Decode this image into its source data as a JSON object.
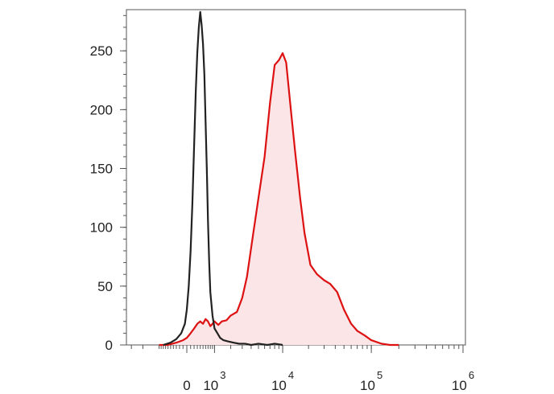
{
  "chart_data": {
    "type": "area",
    "title": "",
    "xlabel": "",
    "ylabel": "",
    "x_scale": "logicle",
    "x_ticks": [
      {
        "value": 0,
        "base": "0",
        "exp": ""
      },
      {
        "value": 1000,
        "base": "10",
        "exp": "3"
      },
      {
        "value": 10000,
        "base": "10",
        "exp": "4"
      },
      {
        "value": 100000,
        "base": "10",
        "exp": "5"
      },
      {
        "value": 1000000,
        "base": "10",
        "exp": "6"
      }
    ],
    "ylim": [
      0,
      285
    ],
    "y_ticks": [
      0,
      50,
      100,
      150,
      200,
      250
    ],
    "grid": false,
    "legend": "none",
    "series": [
      {
        "color": "#222222",
        "fill": "none",
        "x": [
          -800,
          -500,
          -300,
          -150,
          -50,
          0,
          50,
          100,
          150,
          200,
          250,
          300,
          350,
          400,
          450,
          500,
          550,
          600,
          650,
          700,
          750,
          800,
          900,
          1000,
          1150,
          1300,
          1500,
          1800,
          2200,
          2700,
          3300,
          4000,
          5000,
          6500,
          8000,
          10000
        ],
        "y": [
          0,
          2,
          5,
          10,
          18,
          30,
          50,
          80,
          120,
          170,
          215,
          248,
          270,
          283,
          272,
          256,
          230,
          190,
          148,
          105,
          70,
          45,
          25,
          14,
          10,
          6,
          4,
          3,
          2,
          1,
          1,
          0,
          1,
          0,
          1,
          0
        ]
      },
      {
        "color": "#dd1111",
        "fill": "#fbe5e7",
        "x": [
          -1000,
          -600,
          -300,
          -100,
          0,
          100,
          200,
          300,
          400,
          500,
          600,
          700,
          800,
          900,
          1000,
          1200,
          1400,
          1700,
          2000,
          2500,
          3000,
          3500,
          4200,
          5000,
          6000,
          7000,
          8000,
          9000,
          10000,
          11000,
          12500,
          14000,
          16000,
          18000,
          21000,
          25000,
          30000,
          35000,
          42000,
          50000,
          60000,
          70000,
          85000,
          100000,
          130000,
          160000,
          200000
        ],
        "y": [
          0,
          0,
          2,
          4,
          6,
          10,
          14,
          18,
          20,
          18,
          22,
          20,
          16,
          18,
          20,
          17,
          20,
          21,
          25,
          28,
          40,
          58,
          92,
          125,
          160,
          205,
          238,
          242,
          248,
          240,
          200,
          165,
          125,
          95,
          68,
          60,
          55,
          52,
          45,
          30,
          18,
          12,
          8,
          4,
          1,
          0,
          0
        ]
      }
    ]
  }
}
